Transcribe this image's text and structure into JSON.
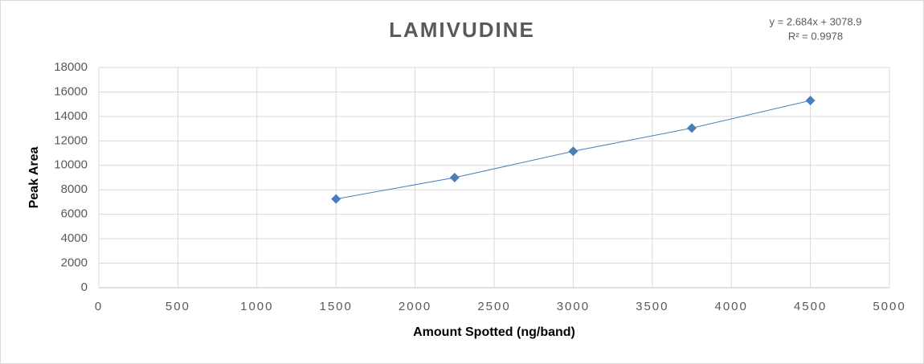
{
  "chart_data": {
    "type": "scatter",
    "title": "LAMIVUDINE",
    "annotations": [
      "y = 2.684x + 3078.9",
      "R² = 0.9978"
    ],
    "x_label": "Amount Spotted (ng/band)",
    "y_label": "Peak Area",
    "series": [
      {
        "name": "Lamivudine",
        "color": "#4a7ebb",
        "x": [
          1500,
          2250,
          3000,
          3750,
          4500
        ],
        "values": [
          7250,
          9000,
          11150,
          13050,
          15300
        ]
      }
    ],
    "xlim": [
      0,
      5000
    ],
    "xticks": [
      0,
      500,
      1000,
      1500,
      2000,
      2500,
      3000,
      3500,
      4000,
      4500,
      5000
    ],
    "ylim": [
      0,
      18000
    ],
    "yticks": [
      0,
      2000,
      4000,
      6000,
      8000,
      10000,
      12000,
      14000,
      16000,
      18000
    ],
    "grid": true
  }
}
